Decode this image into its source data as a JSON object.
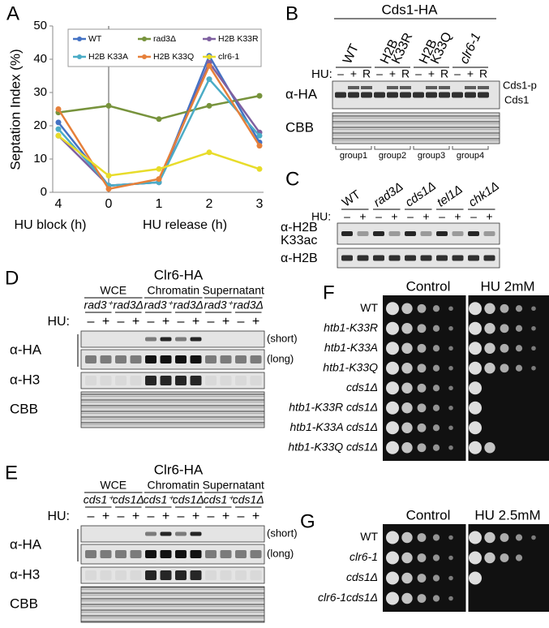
{
  "chart_data": {
    "type": "line",
    "label": "A",
    "ylabel": "Septation Index (%)",
    "categories": [
      "4",
      "0",
      "1",
      "2",
      "3"
    ],
    "xgroups": [
      "HU block (h)",
      "HU release (h)"
    ],
    "ylim": [
      0,
      50
    ],
    "yticks": [
      0,
      10,
      20,
      30,
      40,
      50
    ],
    "series": [
      {
        "name": "WT",
        "color": "#4472c4",
        "values": [
          21,
          2,
          3,
          41,
          15
        ]
      },
      {
        "name": "rad3Δ",
        "color": "#77933c",
        "values": [
          24,
          26,
          22,
          26,
          29
        ]
      },
      {
        "name": "H2B K33R",
        "color": "#7f60a0",
        "values": [
          17,
          2,
          3,
          39,
          18
        ]
      },
      {
        "name": "H2B K33A",
        "color": "#4bacc6",
        "values": [
          19,
          2,
          3,
          34,
          17
        ]
      },
      {
        "name": "H2B K33Q",
        "color": "#e6803a",
        "values": [
          25,
          1,
          4,
          38,
          14
        ]
      },
      {
        "name": "clr6-1",
        "color": "#e8dc2a",
        "values": [
          17,
          5,
          7,
          12,
          7
        ]
      }
    ]
  },
  "panel_b": {
    "label": "B",
    "title": "Cds1-HA",
    "lanes": [
      [
        "WT"
      ],
      [
        "H2B",
        "K33R"
      ],
      [
        "H2B",
        "K33Q"
      ],
      [
        "clr6-1"
      ]
    ],
    "hu_label": "HU:",
    "hu": [
      "–",
      "+",
      "R",
      "–",
      "+",
      "R",
      "–",
      "+",
      "R",
      "–",
      "+",
      "R"
    ],
    "rows": [
      "α-HA",
      "CBB"
    ],
    "bands": [
      "Cds1-p",
      "Cds1"
    ],
    "groups": [
      "group1",
      "group2",
      "group3",
      "group4"
    ]
  },
  "panel_c": {
    "label": "C",
    "strains": [
      "WT",
      "rad3Δ",
      "cds1Δ",
      "tel1Δ",
      "chk1Δ"
    ],
    "hu_label": "HU:",
    "hu": [
      "–",
      "+",
      "–",
      "+",
      "–",
      "+",
      "–",
      "+",
      "–",
      "+"
    ],
    "rows": [
      [
        "α-H2B",
        "K33ac"
      ],
      [
        "α-H2B"
      ]
    ]
  },
  "panel_d": {
    "label": "D",
    "title": "Clr6-HA",
    "sections": [
      "WCE",
      "Chromatin",
      "Supernatant"
    ],
    "strains": [
      "rad3⁺",
      "rad3Δ",
      "rad3⁺",
      "rad3Δ",
      "rad3⁺",
      "rad3Δ"
    ],
    "hu_label": "HU:",
    "hu": [
      "–",
      "+",
      "–",
      "+",
      "–",
      "+",
      "–",
      "+",
      "–",
      "+",
      "–",
      "+"
    ],
    "rows": [
      "α-HA",
      "α-H3",
      "CBB"
    ],
    "exposures": [
      "(short)",
      "(long)"
    ]
  },
  "panel_e": {
    "label": "E",
    "title": "Clr6-HA",
    "sections": [
      "WCE",
      "Chromatin",
      "Supernatant"
    ],
    "strains": [
      "cds1⁺",
      "cds1Δ",
      "cds1⁺",
      "cds1Δ",
      "cds1⁺",
      "cds1Δ"
    ],
    "hu_label": "HU:",
    "hu": [
      "–",
      "+",
      "–",
      "+",
      "–",
      "+",
      "–",
      "+",
      "–",
      "+",
      "–",
      "+"
    ],
    "rows": [
      "α-HA",
      "α-H3",
      "CBB"
    ],
    "exposures": [
      "(short)",
      "(long)"
    ]
  },
  "panel_f": {
    "label": "F",
    "conditions": [
      "Control",
      "HU 2mM"
    ],
    "strains": [
      "WT",
      "htb1-K33R",
      "htb1-K33A",
      "htb1-K33Q",
      "cds1Δ",
      "htb1-K33R cds1Δ",
      "htb1-K33A cds1Δ",
      "htb1-K33Q cds1Δ"
    ]
  },
  "panel_g": {
    "label": "G",
    "conditions": [
      "Control",
      "HU 2.5mM"
    ],
    "strains": [
      "WT",
      "clr6-1",
      "cds1Δ",
      "clr6-1cds1Δ"
    ]
  }
}
